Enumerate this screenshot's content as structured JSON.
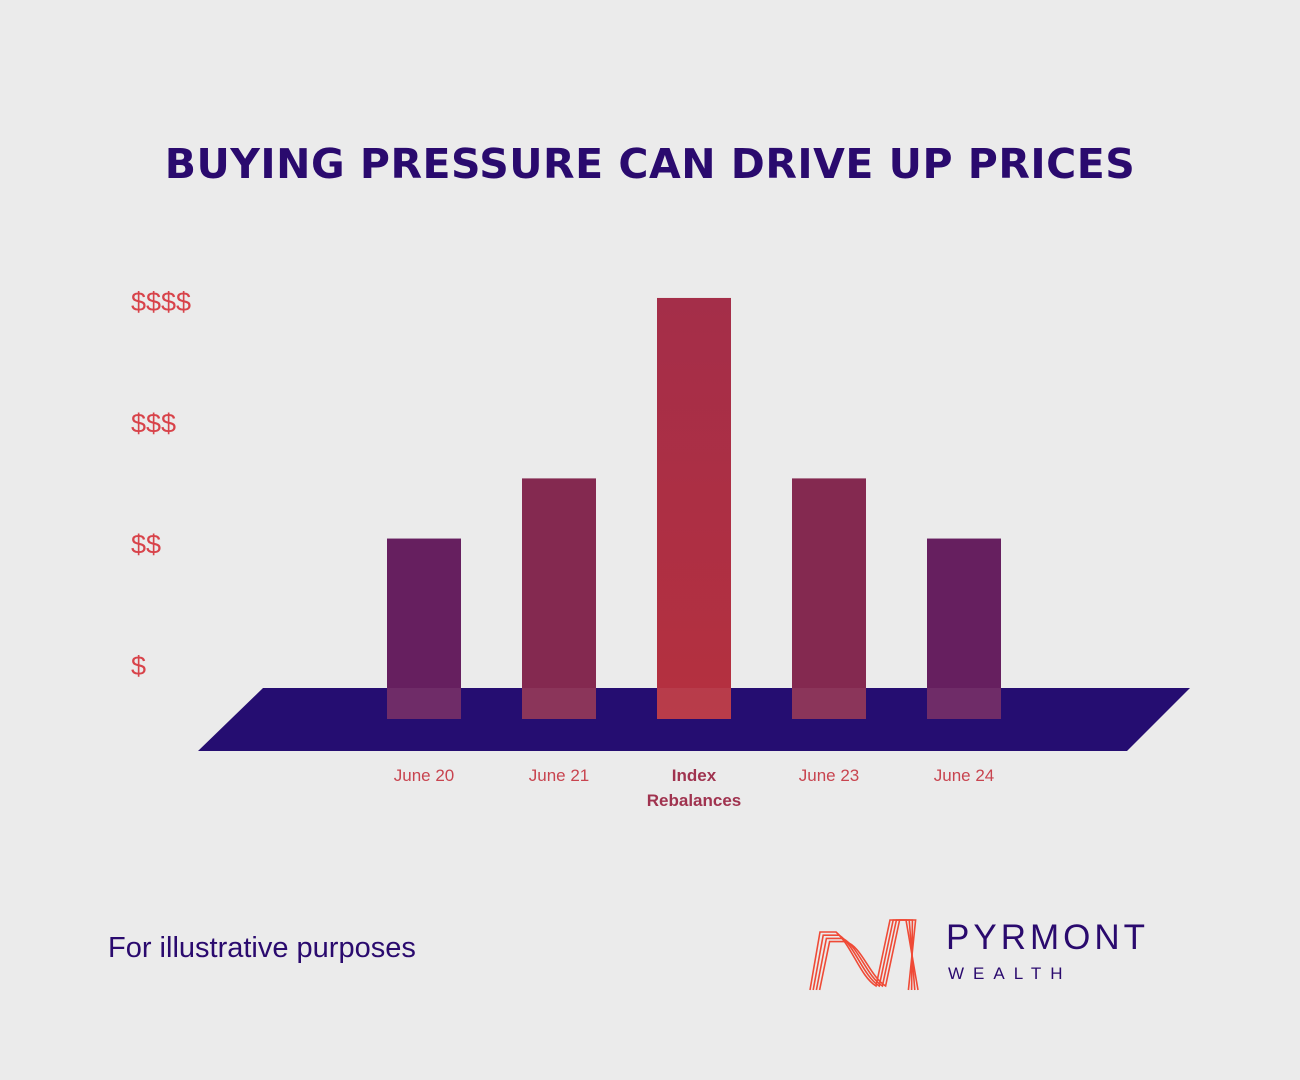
{
  "chart_data": {
    "type": "bar",
    "title": "BUYING PRESSURE CAN DRIVE UP PRICES",
    "categories": [
      "June 20",
      "June 21",
      "Index Rebalances",
      "June 23",
      "June 24"
    ],
    "category_lines": [
      [
        "June 20"
      ],
      [
        "June 21"
      ],
      [
        "Index",
        "Rebalances"
      ],
      [
        "June 23"
      ],
      [
        "June 24"
      ]
    ],
    "values": [
      1.5,
      2,
      3.5,
      2,
      1.5
    ],
    "yticks": [
      {
        "value": 1,
        "label": "$"
      },
      {
        "value": 2,
        "label": "$$"
      },
      {
        "value": 3,
        "label": "$$$"
      },
      {
        "value": 4,
        "label": "$$$$"
      }
    ],
    "highlight_index": 2,
    "grid": false,
    "colors": {
      "bar_low": "#661f5f",
      "bar_mid": "#842950",
      "bar_peak": "#a42e49",
      "floor": "#250d71",
      "title": "#2a0a6e",
      "tick": "#d8434a"
    }
  },
  "footnote": "For illustrative purposes",
  "brand": {
    "name": "PYRMONT",
    "sub": "WEALTH",
    "logo_icon": "pyrmont-logo-icon",
    "logo_color": "#ef4a36"
  }
}
